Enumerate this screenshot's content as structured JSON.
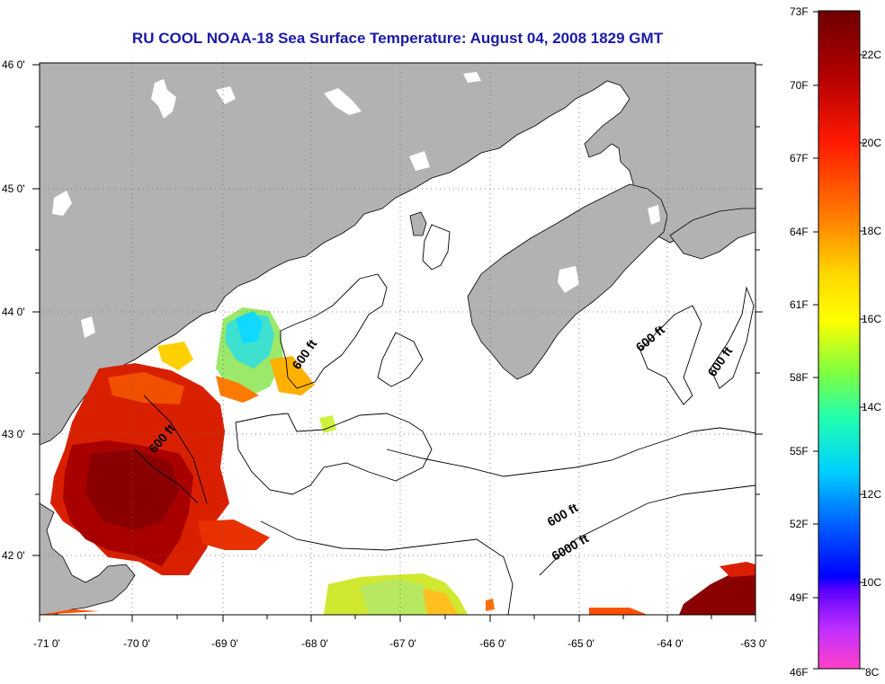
{
  "title": "RU COOL  NOAA-18  Sea Surface Temperature:  August 04, 2008 1829 GMT",
  "lon_labels": [
    "-71 0'",
    "-70 0'",
    "-69 0'",
    "-68 0'",
    "-67 0'",
    "-66 0'",
    "-65 0'",
    "-64 0'",
    "-63 0'"
  ],
  "lat_labels": [
    "46 0'",
    "45 0'",
    "44 0'",
    "43 0'",
    "42 0'"
  ],
  "contour_labels": [
    "600 ft",
    "600 ft",
    "600 ft",
    "600 ft",
    "600 ft",
    "6000 ft"
  ],
  "colorbar": {
    "fahrenheit": [
      "73F",
      "70F",
      "67F",
      "64F",
      "61F",
      "58F",
      "55F",
      "52F",
      "49F",
      "46F"
    ],
    "celsius": [
      "22C",
      "20C",
      "18C",
      "16C",
      "14C",
      "12C",
      "10C",
      "8C"
    ]
  },
  "colors": {
    "land": "#b2b2b2",
    "water": "#ffffff",
    "title": "#1a1aa8"
  }
}
